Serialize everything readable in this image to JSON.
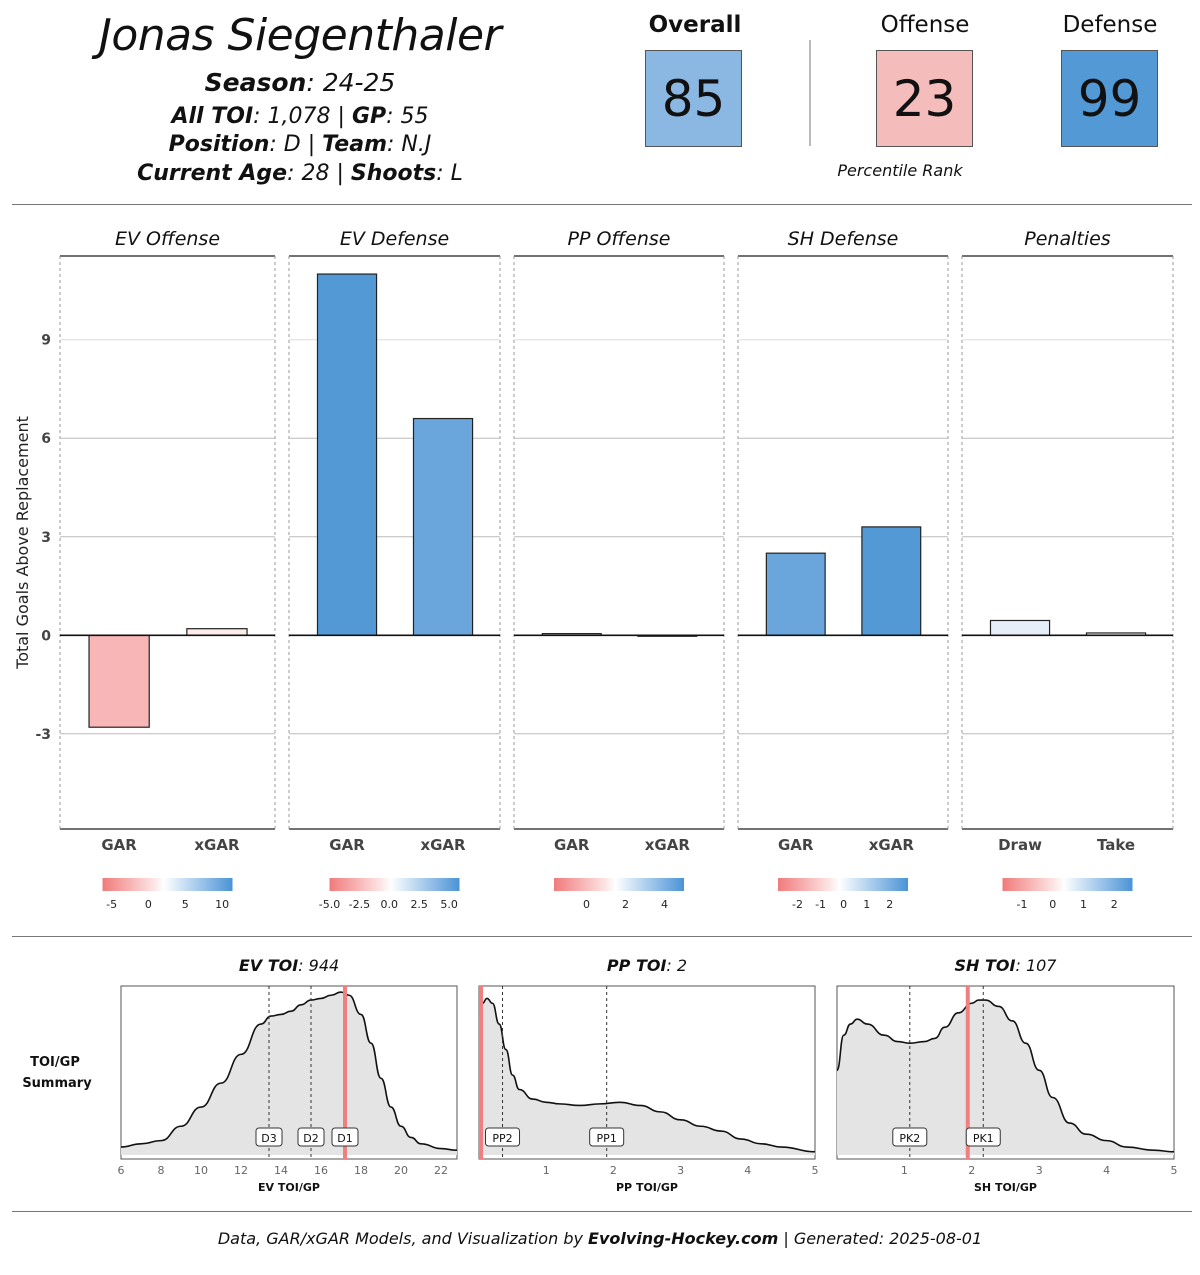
{
  "header": {
    "player_name": "Jonas Siegenthaler",
    "season_label": "Season",
    "season_value": ": 24-25",
    "all_toi_label": "All TOI",
    "all_toi_value": ": 1,078 | ",
    "gp_label": "GP",
    "gp_value": ": 55",
    "position_label": "Position",
    "position_value": ": D | ",
    "team_label": "Team",
    "team_value": ": N.J",
    "age_label": "Current Age",
    "age_value": ": 28 | ",
    "shoots_label": "Shoots",
    "shoots_value": ": L"
  },
  "percentiles": {
    "overall_label": "Overall",
    "overall_value": "85",
    "overall_color": "#8bb8e3",
    "offense_label": "Offense",
    "offense_value": "23",
    "offense_color": "#f5bcbc",
    "defense_label": "Defense",
    "defense_value": "99",
    "defense_color": "#5399d6",
    "caption": "Percentile Rank"
  },
  "chart_data": [
    {
      "type": "bar",
      "ylabel": "Total Goals Above Replacement",
      "ylim": [
        -5.9,
        11.55
      ],
      "yticks": [
        -3,
        0,
        3,
        6,
        9
      ],
      "grid": true,
      "panels": [
        {
          "title": "EV Offense",
          "categories": [
            "GAR",
            "xGAR"
          ],
          "values": [
            -2.8,
            0.2
          ],
          "colors": [
            "#f8b6b6",
            "#fdeaea"
          ],
          "legend_ticks": [
            "-5",
            "0",
            "5",
            "10"
          ]
        },
        {
          "title": "EV Defense",
          "categories": [
            "GAR",
            "xGAR"
          ],
          "values": [
            11.0,
            6.6
          ],
          "colors": [
            "#5399d6",
            "#6aa6dc"
          ],
          "legend_ticks": [
            "-5.0",
            "-2.5",
            "0.0",
            "2.5",
            "5.0"
          ]
        },
        {
          "title": "PP Offense",
          "categories": [
            "GAR",
            "xGAR"
          ],
          "values": [
            0.05,
            -0.02
          ],
          "colors": [
            "#f5f8fd",
            "#fffafa"
          ],
          "legend_ticks": [
            "0",
            "2",
            "4"
          ]
        },
        {
          "title": "SH Defense",
          "categories": [
            "GAR",
            "xGAR"
          ],
          "values": [
            2.5,
            3.3
          ],
          "colors": [
            "#6aa6dc",
            "#5399d6"
          ],
          "legend_ticks": [
            "-2",
            "-1",
            "0",
            "1",
            "2"
          ]
        },
        {
          "title": "Penalties",
          "categories": [
            "Draw",
            "Take"
          ],
          "values": [
            0.45,
            0.07
          ],
          "colors": [
            "#e6eefa",
            "#fdfdff"
          ],
          "legend_ticks": [
            "-1",
            "0",
            "1",
            "2"
          ]
        }
      ]
    },
    {
      "type": "area",
      "row_label_line1": "TOI/GP",
      "row_label_line2": "Summary",
      "panels": [
        {
          "title_label": "EV TOI",
          "title_value": ": 944",
          "xlabel": "EV TOI/GP",
          "xlim": [
            6,
            22.8
          ],
          "xticks": [
            6,
            8,
            10,
            12,
            14,
            16,
            18,
            20,
            22
          ],
          "player_value": 17.2,
          "markers": [
            {
              "label": "D3",
              "x": 13.4
            },
            {
              "label": "D2",
              "x": 15.5
            },
            {
              "label": "D1",
              "x": 17.2
            }
          ],
          "density": [
            [
              6,
              0.05
            ],
            [
              7,
              0.07
            ],
            [
              8,
              0.09
            ],
            [
              9,
              0.18
            ],
            [
              10,
              0.3
            ],
            [
              11,
              0.45
            ],
            [
              12,
              0.63
            ],
            [
              13,
              0.82
            ],
            [
              13.5,
              0.87
            ],
            [
              14,
              0.88
            ],
            [
              14.5,
              0.9
            ],
            [
              15,
              0.94
            ],
            [
              15.5,
              0.97
            ],
            [
              16,
              0.98
            ],
            [
              16.5,
              1.0
            ],
            [
              17,
              1.02
            ],
            [
              17.4,
              1.0
            ],
            [
              18,
              0.88
            ],
            [
              18.5,
              0.7
            ],
            [
              19,
              0.48
            ],
            [
              19.5,
              0.3
            ],
            [
              20,
              0.18
            ],
            [
              20.5,
              0.11
            ],
            [
              21,
              0.07
            ],
            [
              22,
              0.04
            ],
            [
              22.8,
              0.03
            ]
          ]
        },
        {
          "title_label": "PP TOI",
          "title_value": ": 2",
          "xlabel": "PP TOI/GP",
          "xlim": [
            0,
            5
          ],
          "xticks": [
            1,
            2,
            3,
            4,
            5
          ],
          "player_value": 0.03,
          "markers": [
            {
              "label": "PP2",
              "x": 0.35
            },
            {
              "label": "PP1",
              "x": 1.9
            }
          ],
          "density": [
            [
              0,
              0.88
            ],
            [
              0.05,
              0.95
            ],
            [
              0.12,
              0.98
            ],
            [
              0.2,
              0.95
            ],
            [
              0.3,
              0.82
            ],
            [
              0.4,
              0.66
            ],
            [
              0.5,
              0.5
            ],
            [
              0.6,
              0.41
            ],
            [
              0.8,
              0.35
            ],
            [
              1,
              0.33
            ],
            [
              1.2,
              0.32
            ],
            [
              1.5,
              0.31
            ],
            [
              1.8,
              0.32
            ],
            [
              2.1,
              0.33
            ],
            [
              2.4,
              0.31
            ],
            [
              2.7,
              0.27
            ],
            [
              3,
              0.22
            ],
            [
              3.3,
              0.18
            ],
            [
              3.6,
              0.15
            ],
            [
              3.9,
              0.1
            ],
            [
              4.2,
              0.07
            ],
            [
              4.5,
              0.05
            ],
            [
              5,
              0.02
            ]
          ]
        },
        {
          "title_label": "SH TOI",
          "title_value": ": 107",
          "xlabel": "SH TOI/GP",
          "xlim": [
            0,
            5
          ],
          "xticks": [
            1,
            2,
            3,
            4,
            5
          ],
          "player_value": 1.94,
          "markers": [
            {
              "label": "PK2",
              "x": 1.08
            },
            {
              "label": "PK1",
              "x": 2.17
            }
          ],
          "density": [
            [
              0,
              0.53
            ],
            [
              0.1,
              0.75
            ],
            [
              0.2,
              0.82
            ],
            [
              0.3,
              0.85
            ],
            [
              0.45,
              0.82
            ],
            [
              0.7,
              0.75
            ],
            [
              0.9,
              0.71
            ],
            [
              1.08,
              0.7
            ],
            [
              1.3,
              0.71
            ],
            [
              1.45,
              0.73
            ],
            [
              1.6,
              0.8
            ],
            [
              1.8,
              0.89
            ],
            [
              2,
              0.95
            ],
            [
              2.1,
              0.97
            ],
            [
              2.2,
              0.97
            ],
            [
              2.4,
              0.93
            ],
            [
              2.6,
              0.84
            ],
            [
              2.8,
              0.7
            ],
            [
              3,
              0.53
            ],
            [
              3.2,
              0.36
            ],
            [
              3.45,
              0.2
            ],
            [
              3.7,
              0.13
            ],
            [
              4,
              0.09
            ],
            [
              4.3,
              0.05
            ],
            [
              4.7,
              0.03
            ],
            [
              5,
              0.02
            ]
          ]
        }
      ]
    }
  ],
  "footer": {
    "text_pre": "Data, GAR/xGAR Models, and Visualization by ",
    "brand": "Evolving-Hockey.com",
    "text_post": " | Generated: 2025-08-01"
  }
}
